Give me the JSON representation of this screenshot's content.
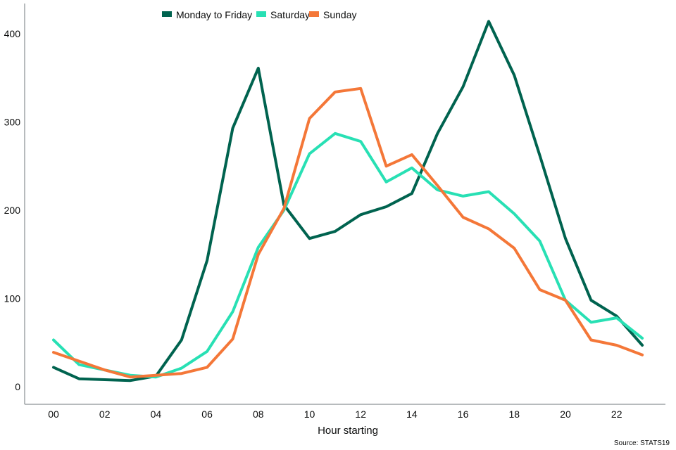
{
  "chart_data": {
    "type": "line",
    "title": "",
    "xlabel": "Hour starting",
    "ylabel": "",
    "source": "Source: STATS19",
    "x": [
      "00",
      "01",
      "02",
      "03",
      "04",
      "05",
      "06",
      "07",
      "08",
      "09",
      "10",
      "11",
      "12",
      "13",
      "14",
      "15",
      "16",
      "17",
      "18",
      "19",
      "20",
      "21",
      "22",
      "23"
    ],
    "x_tick_labels": [
      "00",
      "02",
      "04",
      "06",
      "08",
      "10",
      "12",
      "14",
      "16",
      "18",
      "20",
      "22"
    ],
    "y_ticks": [
      0,
      100,
      200,
      300,
      400
    ],
    "ylim": [
      -20,
      430
    ],
    "grid": false,
    "legend_position": "top-center",
    "series": [
      {
        "name": "Monday to Friday",
        "color": "#00634f",
        "values": [
          22,
          9,
          8,
          7,
          12,
          53,
          143,
          293,
          361,
          206,
          168,
          176,
          195,
          204,
          219,
          287,
          340,
          414,
          353,
          262,
          168,
          98,
          80,
          47
        ]
      },
      {
        "name": "Saturday",
        "color": "#28e0b4",
        "values": [
          53,
          25,
          19,
          13,
          11,
          21,
          40,
          85,
          158,
          200,
          264,
          287,
          278,
          232,
          248,
          223,
          216,
          221,
          196,
          165,
          98,
          73,
          78,
          55
        ]
      },
      {
        "name": "Sunday",
        "color": "#f47738",
        "values": [
          39,
          29,
          19,
          11,
          13,
          15,
          22,
          54,
          150,
          202,
          304,
          334,
          338,
          250,
          263,
          228,
          192,
          179,
          157,
          110,
          98,
          53,
          47,
          36
        ]
      }
    ]
  }
}
